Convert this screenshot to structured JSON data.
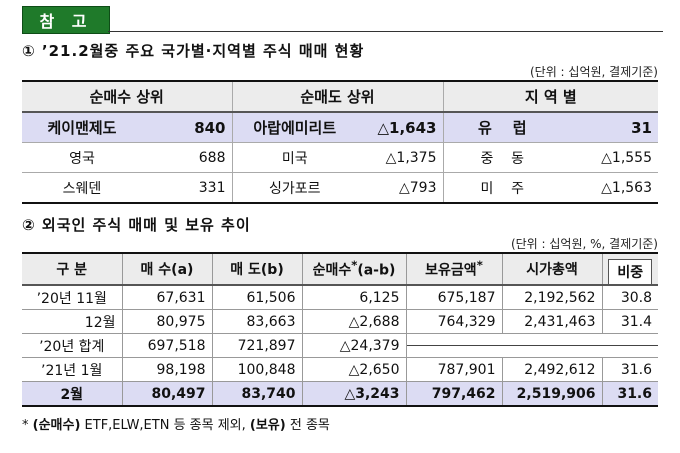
{
  "badge": "참 고",
  "section1": {
    "title": "①  ’21.2월중 주요 국가별·지역별 주식 매매 현황",
    "unit": "(단위 : 십억원, 결제기준)",
    "headers": [
      "순매수 상위",
      "순매도 상위",
      "지 역 별"
    ],
    "rows": [
      [
        {
          "label": "케이맨제도",
          "value": "840"
        },
        {
          "label": "아랍에미리트",
          "value": "△1,643"
        },
        {
          "label": "유    럽",
          "value": "31"
        }
      ],
      [
        {
          "label": "영국",
          "value": "688"
        },
        {
          "label": "미국",
          "value": "△1,375"
        },
        {
          "label": "중    동",
          "value": "△1,555"
        }
      ],
      [
        {
          "label": "스웨덴",
          "value": "331"
        },
        {
          "label": "싱가포르",
          "value": "△793"
        },
        {
          "label": "미    주",
          "value": "△1,563"
        }
      ]
    ]
  },
  "section2": {
    "title": "②  외국인 주식 매매 및 보유 추이",
    "unit": "(단위 : 십억원, %, 결제기준)",
    "headers": {
      "period": "구 분",
      "buy": "매 수(a)",
      "sell": "매 도(b)",
      "net_pre": "순매수",
      "net_sup": "*",
      "net_post": "(a-b)",
      "hold_pre": "보유금액",
      "hold_sup": "*",
      "mcap": "시가총액",
      "ratio": "비중"
    },
    "rows": {
      "r1": {
        "period": "’20년 11월",
        "buy": "67,631",
        "sell": "61,506",
        "net": "6,125",
        "hold": "675,187",
        "mcap": "2,192,562",
        "ratio": "30.8"
      },
      "r2": {
        "period": "12월",
        "buy": "80,975",
        "sell": "83,663",
        "net": "△2,688",
        "hold": "764,329",
        "mcap": "2,431,463",
        "ratio": "31.4"
      },
      "r3": {
        "period": "’20년 합계",
        "buy": "697,518",
        "sell": "721,897",
        "net": "△24,379"
      },
      "r4": {
        "period": "’21년 1월",
        "buy": "98,198",
        "sell": "100,848",
        "net": "△2,650",
        "hold": "787,901",
        "mcap": "2,492,612",
        "ratio": "31.6"
      },
      "r5": {
        "period": "2월",
        "buy": "80,497",
        "sell": "83,740",
        "net": "△3,243",
        "hold": "797,462",
        "mcap": "2,519,906",
        "ratio": "31.6"
      }
    }
  },
  "footnote": {
    "star": "* ",
    "b1": "(순매수)",
    "t1": " ETF,ELW,ETN 등 종목 제외, ",
    "b2": "(보유)",
    "t2": " 전 종목"
  }
}
